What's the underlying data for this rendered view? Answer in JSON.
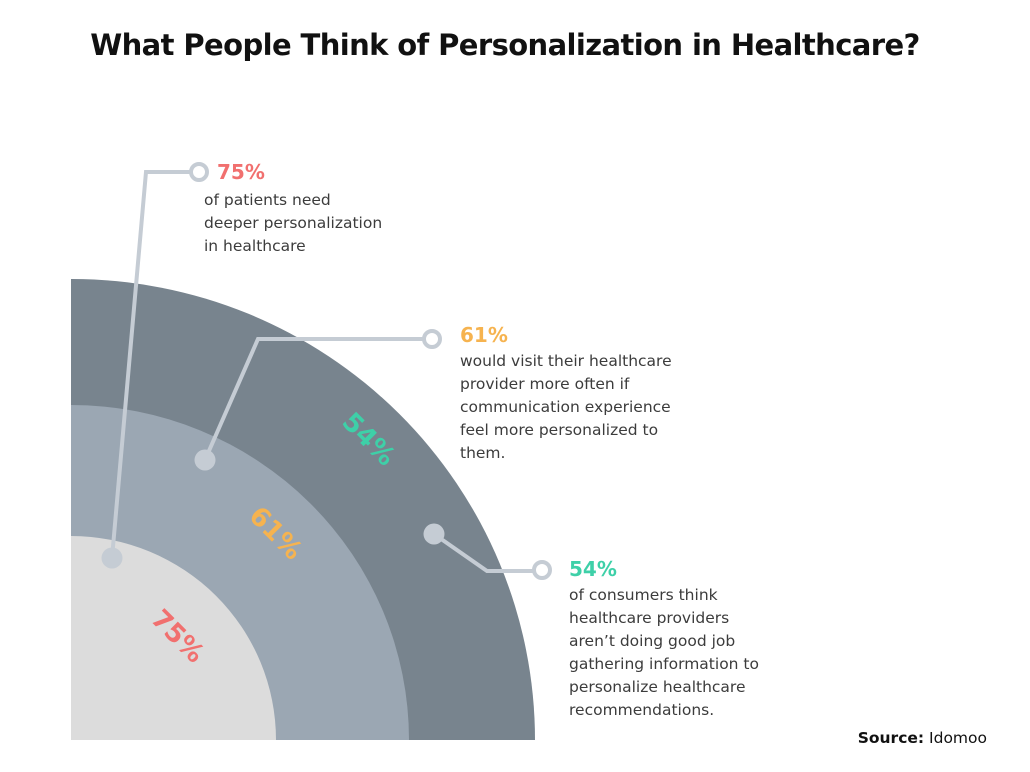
{
  "title": "What People Think of Personalization in Healthcare?",
  "colors": {
    "red": "#f1706f",
    "orange": "#f6b34f",
    "green": "#3ed0a8",
    "band_outer": "#78848e",
    "band_middle": "#9ba7b3",
    "band_inner": "#dcdcdc",
    "connector": "#c5ccd4",
    "desc_text": "#3c3c3c"
  },
  "chart_data": {
    "type": "area",
    "series": [
      {
        "name": "",
        "value": 75,
        "label": "75%",
        "color": "#f1706f"
      },
      {
        "name": "",
        "value": 61,
        "label": "61%",
        "color": "#f6b34f"
      },
      {
        "name": "",
        "value": 54,
        "label": "54%",
        "color": "#3ed0a8"
      }
    ]
  },
  "callouts": [
    {
      "pct": "75%",
      "lines": [
        "of patients need",
        "deeper personalization",
        "in healthcare"
      ],
      "color": "#f1706f"
    },
    {
      "pct": "61%",
      "lines": [
        "would visit their healthcare",
        "provider more often if",
        "communication experience",
        "feel more personalized to",
        "them."
      ],
      "color": "#f6b34f"
    },
    {
      "pct": "54%",
      "lines": [
        "of consumers think",
        "healthcare providers",
        "aren’t doing good job",
        "gathering information to",
        "personalize healthcare",
        "recommendations."
      ],
      "color": "#3ed0a8"
    }
  ],
  "source": {
    "label": "Source:",
    "value": "Idomoo"
  }
}
